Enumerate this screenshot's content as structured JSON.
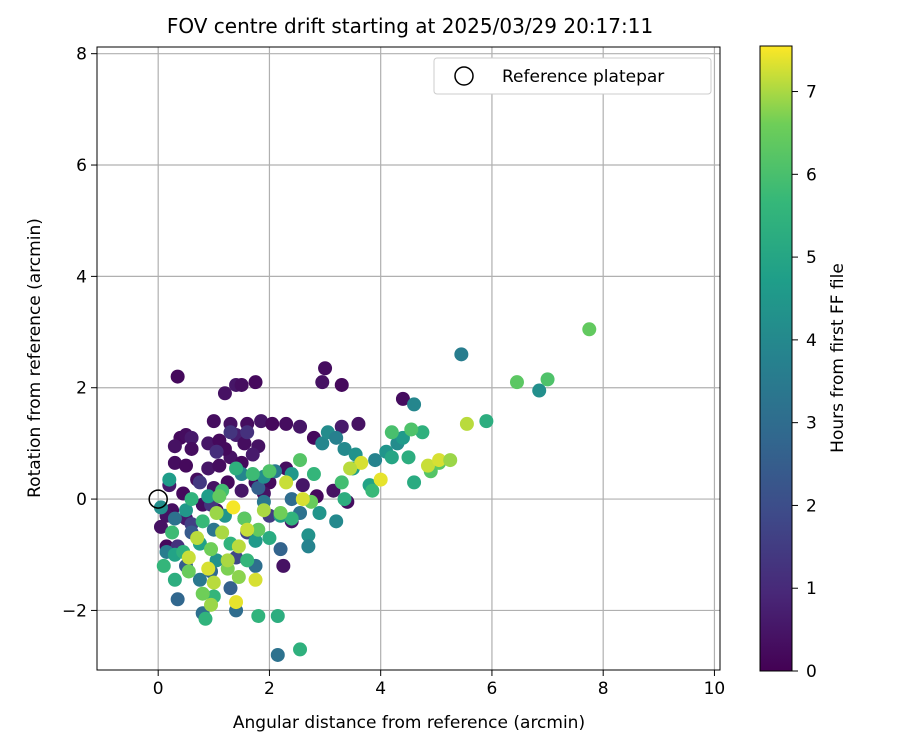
{
  "chart_data": {
    "type": "scatter",
    "title": "FOV centre drift starting at 2025/03/29 20:17:11",
    "xlabel": "Angular distance from reference (arcmin)",
    "ylabel": "Rotation from reference (arcmin)",
    "xlim": [
      -1.1,
      10.1
    ],
    "ylim": [
      -3.07,
      8.12
    ],
    "xticks": [
      0,
      2,
      4,
      6,
      8,
      10
    ],
    "yticks": [
      -2,
      0,
      2,
      4,
      6,
      8
    ],
    "grid": true,
    "legend": {
      "placement": "top-right",
      "entries": [
        "Reference platepar"
      ]
    },
    "reference_point": {
      "x": 0,
      "y": 0
    },
    "colorbar": {
      "label": "Hours from first FF file",
      "colormap": "viridis",
      "range": [
        0,
        7.55
      ],
      "ticks": [
        0,
        1,
        2,
        3,
        4,
        5,
        6,
        7
      ]
    },
    "series": [
      {
        "points_x_y_hours": [
          [
            0.35,
            2.2,
            0.2
          ],
          [
            1.0,
            1.4,
            0.3
          ],
          [
            1.2,
            1.9,
            0.4
          ],
          [
            1.4,
            2.05,
            0.5
          ],
          [
            1.5,
            2.05,
            0.3
          ],
          [
            1.75,
            2.1,
            0.2
          ],
          [
            1.3,
            1.35,
            0.4
          ],
          [
            1.6,
            1.35,
            0.3
          ],
          [
            1.85,
            1.4,
            0.5
          ],
          [
            2.05,
            1.35,
            0.2
          ],
          [
            0.4,
            1.1,
            0.2
          ],
          [
            0.5,
            1.15,
            0.3
          ],
          [
            0.6,
            1.1,
            0.6
          ],
          [
            0.3,
            0.95,
            0.4
          ],
          [
            0.9,
            1.0,
            0.5
          ],
          [
            1.1,
            1.05,
            0.2
          ],
          [
            1.4,
            1.15,
            0.7
          ],
          [
            1.55,
            1.0,
            0.3
          ],
          [
            1.8,
            0.95,
            0.4
          ],
          [
            2.3,
            1.35,
            0.3
          ],
          [
            2.55,
            1.3,
            0.5
          ],
          [
            2.8,
            1.1,
            0.2
          ],
          [
            3.0,
            2.35,
            0.3
          ],
          [
            2.95,
            2.1,
            0.4
          ],
          [
            3.3,
            2.05,
            0.2
          ],
          [
            3.3,
            1.3,
            0.6
          ],
          [
            3.6,
            1.35,
            0.4
          ],
          [
            4.4,
            1.8,
            0.3
          ],
          [
            2.25,
            -1.2,
            0.4
          ],
          [
            2.0,
            0.3,
            0.2
          ],
          [
            0.3,
            0.65,
            0.3
          ],
          [
            0.5,
            0.6,
            0.2
          ],
          [
            0.9,
            0.55,
            0.5
          ],
          [
            1.1,
            0.6,
            0.3
          ],
          [
            1.3,
            0.75,
            0.4
          ],
          [
            1.5,
            0.65,
            0.2
          ],
          [
            1.7,
            0.8,
            0.6
          ],
          [
            0.7,
            0.35,
            0.3
          ],
          [
            1.0,
            0.2,
            0.4
          ],
          [
            1.25,
            0.3,
            0.2
          ],
          [
            1.5,
            0.15,
            0.5
          ],
          [
            1.75,
            0.3,
            0.3
          ],
          [
            1.9,
            0.1,
            0.4
          ],
          [
            0.2,
            0.25,
            0.6
          ],
          [
            0.45,
            0.1,
            0.2
          ],
          [
            0.25,
            -0.2,
            0.3
          ],
          [
            0.05,
            -0.5,
            0.4
          ],
          [
            0.15,
            -0.85,
            0.2
          ],
          [
            0.5,
            -0.35,
            0.6
          ],
          [
            0.8,
            -0.1,
            0.3
          ],
          [
            1.05,
            -0.2,
            0.4
          ],
          [
            2.3,
            0.55,
            0.3
          ],
          [
            2.6,
            0.25,
            0.5
          ],
          [
            2.85,
            0.05,
            0.2
          ],
          [
            3.15,
            0.15,
            0.4
          ],
          [
            3.4,
            -0.05,
            0.3
          ],
          [
            2.4,
            -0.4,
            0.5
          ],
          [
            0.15,
            -0.3,
            0.4
          ],
          [
            0.6,
            0.9,
            0.3
          ],
          [
            1.2,
            0.9,
            0.2
          ],
          [
            1.6,
            1.2,
            1.2
          ],
          [
            1.3,
            1.2,
            1.3
          ],
          [
            1.05,
            0.85,
            1.1
          ],
          [
            0.75,
            0.3,
            1.4
          ],
          [
            0.95,
            -0.1,
            1.3
          ],
          [
            0.6,
            -0.45,
            1.6
          ],
          [
            0.35,
            -0.85,
            1.2
          ],
          [
            1.6,
            -0.6,
            1.7
          ],
          [
            2.0,
            -0.3,
            1.5
          ],
          [
            1.4,
            -1.05,
            1.8
          ],
          [
            0.5,
            -1.2,
            2.5
          ],
          [
            0.35,
            -1.8,
            2.8
          ],
          [
            0.8,
            -2.05,
            3.1
          ],
          [
            1.4,
            -2.0,
            3.0
          ],
          [
            2.15,
            -2.8,
            3.2
          ],
          [
            1.3,
            -1.6,
            2.6
          ],
          [
            0.95,
            -1.3,
            2.9
          ],
          [
            1.75,
            -1.2,
            3.1
          ],
          [
            2.2,
            -0.9,
            2.7
          ],
          [
            2.55,
            -0.25,
            3.2
          ],
          [
            0.6,
            -0.6,
            2.4
          ],
          [
            1.0,
            -0.55,
            3.3
          ],
          [
            1.55,
            -0.35,
            2.8
          ],
          [
            1.9,
            -0.05,
            3.4
          ],
          [
            2.4,
            0.0,
            3.0
          ],
          [
            2.1,
            0.5,
            3.5
          ],
          [
            1.8,
            0.2,
            2.6
          ],
          [
            0.3,
            -0.35,
            3.2
          ],
          [
            0.15,
            -0.95,
            3.6
          ],
          [
            0.75,
            -1.45,
            3.4
          ],
          [
            2.95,
            1.0,
            3.9
          ],
          [
            3.05,
            1.2,
            4.1
          ],
          [
            3.2,
            1.1,
            3.7
          ],
          [
            3.35,
            0.9,
            4.0
          ],
          [
            3.55,
            0.8,
            4.3
          ],
          [
            3.9,
            0.7,
            3.8
          ],
          [
            4.1,
            0.85,
            4.4
          ],
          [
            4.3,
            1.0,
            4.1
          ],
          [
            4.4,
            1.1,
            4.6
          ],
          [
            4.6,
            1.7,
            3.9
          ],
          [
            5.45,
            2.6,
            3.6
          ],
          [
            6.85,
            1.95,
            4.2
          ],
          [
            3.2,
            -0.4,
            4.0
          ],
          [
            2.4,
            0.45,
            4.5
          ],
          [
            2.7,
            -0.65,
            4.3
          ],
          [
            2.7,
            -0.85,
            3.8
          ],
          [
            1.9,
            0.4,
            4.2
          ],
          [
            2.2,
            -0.3,
            4.6
          ],
          [
            1.5,
            0.45,
            3.9
          ],
          [
            1.2,
            -0.3,
            4.4
          ],
          [
            0.9,
            0.05,
            4.7
          ],
          [
            0.5,
            -0.2,
            4.5
          ],
          [
            0.75,
            -0.8,
            4.8
          ],
          [
            1.05,
            -1.1,
            4.3
          ],
          [
            1.75,
            -0.75,
            4.6
          ],
          [
            0.3,
            -1.0,
            4.9
          ],
          [
            0.05,
            -0.15,
            4.2
          ],
          [
            0.2,
            0.35,
            4.7
          ],
          [
            3.5,
            0.55,
            4.8
          ],
          [
            2.9,
            -0.25,
            4.4
          ],
          [
            3.8,
            0.25,
            4.9
          ],
          [
            4.2,
            0.75,
            5.0
          ],
          [
            4.5,
            0.75,
            5.3
          ],
          [
            4.75,
            1.2,
            5.4
          ],
          [
            5.9,
            1.4,
            5.3
          ],
          [
            4.6,
            0.3,
            5.2
          ],
          [
            3.35,
            0.0,
            5.3
          ],
          [
            2.55,
            -2.7,
            5.4
          ],
          [
            1.8,
            -2.1,
            5.5
          ],
          [
            2.15,
            -2.1,
            5.3
          ],
          [
            0.85,
            -2.15,
            5.5
          ],
          [
            1.0,
            -1.75,
            5.6
          ],
          [
            0.3,
            -1.45,
            5.3
          ],
          [
            0.45,
            -0.95,
            5.4
          ],
          [
            0.8,
            -0.4,
            5.7
          ],
          [
            1.3,
            -0.8,
            5.5
          ],
          [
            1.6,
            -1.1,
            5.6
          ],
          [
            2.0,
            -0.7,
            5.2
          ],
          [
            2.4,
            -0.35,
            5.5
          ],
          [
            2.8,
            0.45,
            5.6
          ],
          [
            1.4,
            0.55,
            5.4
          ],
          [
            1.7,
            0.45,
            5.8
          ],
          [
            1.15,
            0.15,
            5.9
          ],
          [
            0.6,
            0.0,
            5.5
          ],
          [
            0.25,
            -0.6,
            5.8
          ],
          [
            0.1,
            -1.2,
            5.6
          ],
          [
            3.3,
            0.3,
            5.9
          ],
          [
            3.85,
            0.15,
            5.7
          ],
          [
            4.55,
            1.25,
            6.1
          ],
          [
            4.2,
            1.2,
            6.0
          ],
          [
            6.45,
            2.1,
            6.3
          ],
          [
            7.0,
            2.15,
            6.1
          ],
          [
            7.75,
            3.05,
            6.4
          ],
          [
            4.9,
            0.5,
            6.2
          ],
          [
            5.05,
            0.65,
            6.3
          ],
          [
            2.55,
            0.7,
            6.2
          ],
          [
            2.0,
            0.5,
            6.1
          ],
          [
            1.1,
            0.05,
            6.4
          ],
          [
            1.55,
            -0.35,
            6.3
          ],
          [
            0.95,
            -0.9,
            6.6
          ],
          [
            0.55,
            -1.3,
            6.5
          ],
          [
            1.25,
            -1.25,
            6.7
          ],
          [
            1.8,
            -0.55,
            6.4
          ],
          [
            2.2,
            -0.25,
            6.6
          ],
          [
            2.75,
            -0.05,
            6.5
          ],
          [
            1.45,
            -1.4,
            6.8
          ],
          [
            0.8,
            -1.7,
            6.6
          ],
          [
            0.95,
            -1.9,
            6.9
          ],
          [
            1.0,
            -1.5,
            7.1
          ],
          [
            1.25,
            -1.1,
            7.0
          ],
          [
            1.6,
            -0.55,
            7.2
          ],
          [
            1.45,
            -0.85,
            7.1
          ],
          [
            1.75,
            -1.45,
            7.3
          ],
          [
            1.4,
            -1.85,
            7.4
          ],
          [
            1.9,
            -0.2,
            7.0
          ],
          [
            2.3,
            0.3,
            7.2
          ],
          [
            2.6,
            0.0,
            7.3
          ],
          [
            0.7,
            -0.7,
            7.1
          ],
          [
            0.55,
            -1.05,
            7.2
          ],
          [
            1.05,
            -0.25,
            6.9
          ],
          [
            4.85,
            0.6,
            7.2
          ],
          [
            5.05,
            0.7,
            7.3
          ],
          [
            5.25,
            0.7,
            6.9
          ],
          [
            5.55,
            1.35,
            7.1
          ],
          [
            3.65,
            0.65,
            7.3
          ],
          [
            3.45,
            0.55,
            7.1
          ],
          [
            4.0,
            0.35,
            7.4
          ],
          [
            1.35,
            -0.15,
            7.5
          ],
          [
            0.9,
            -1.25,
            7.3
          ],
          [
            1.15,
            -0.6,
            7.0
          ]
        ]
      }
    ]
  }
}
